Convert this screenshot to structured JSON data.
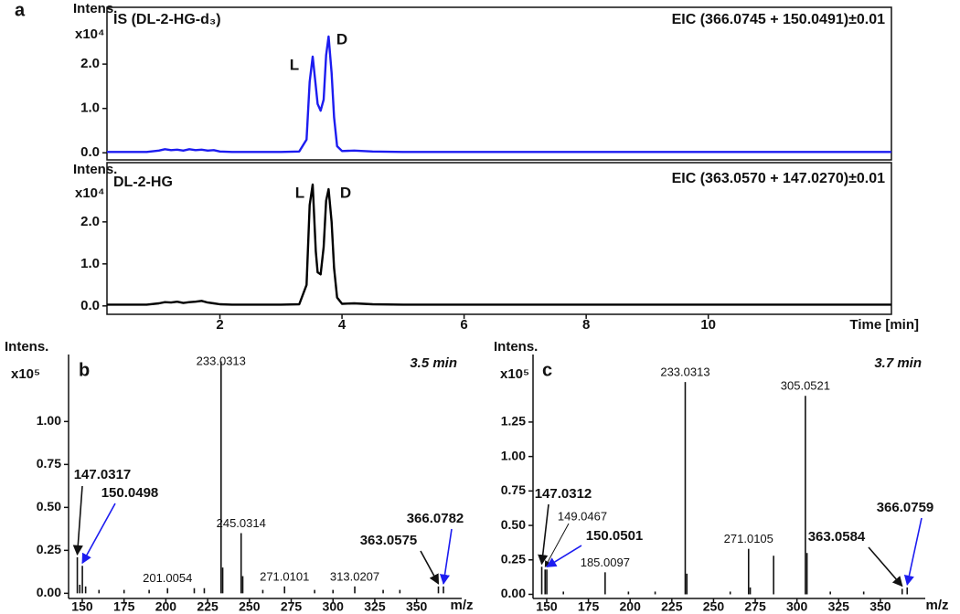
{
  "chart_data": [
    {
      "type": "line",
      "panel": "a",
      "y_label": "Intens.",
      "y_scale": "x10⁴",
      "title": "IS (DL-2-HG-d₃)",
      "subtitle": "EIC (366.0745 + 150.0491)±0.01",
      "annotations": [
        "L",
        "D"
      ],
      "color": "#1c1cf0",
      "x": [
        0.15,
        0.8,
        1.0,
        1.1,
        1.2,
        1.3,
        1.4,
        1.5,
        1.6,
        1.7,
        1.8,
        1.9,
        2.0,
        2.2,
        2.6,
        3.0,
        3.3,
        3.42,
        3.47,
        3.52,
        3.57,
        3.6,
        3.65,
        3.7,
        3.74,
        3.78,
        3.83,
        3.87,
        3.92,
        4.0,
        4.2,
        4.5,
        5.0,
        6.0,
        8.0,
        10.0,
        12.0,
        13.0
      ],
      "values": [
        0.02,
        0.02,
        0.05,
        0.08,
        0.06,
        0.07,
        0.05,
        0.08,
        0.06,
        0.07,
        0.05,
        0.06,
        0.03,
        0.02,
        0.02,
        0.02,
        0.03,
        0.3,
        1.6,
        2.17,
        1.5,
        1.1,
        0.95,
        1.2,
        2.2,
        2.62,
        1.8,
        0.8,
        0.15,
        0.04,
        0.05,
        0.03,
        0.02,
        0.02,
        0.02,
        0.02,
        0.02,
        0.02
      ],
      "xlim": [
        0.15,
        13.0
      ],
      "ylim": [
        -0.16,
        3.28
      ],
      "yticks": [
        {
          "value": 0,
          "label": "0.0"
        },
        {
          "value": 1,
          "label": "1.0"
        },
        {
          "value": 2,
          "label": "2.0"
        }
      ]
    },
    {
      "type": "line",
      "y_label": "Intens.",
      "y_scale": "x10⁴",
      "title": "DL-2-HG",
      "subtitle": "EIC (363.0570 + 147.0270)±0.01",
      "annotations": [
        "L",
        "D"
      ],
      "x_label": "Time [min]",
      "color": "#000000",
      "x": [
        0.15,
        0.8,
        1.0,
        1.1,
        1.2,
        1.3,
        1.4,
        1.5,
        1.6,
        1.7,
        1.8,
        1.9,
        2.0,
        2.2,
        2.6,
        3.0,
        3.3,
        3.42,
        3.47,
        3.52,
        3.57,
        3.6,
        3.65,
        3.7,
        3.74,
        3.78,
        3.83,
        3.87,
        3.92,
        4.0,
        4.2,
        4.5,
        5.0,
        6.0,
        8.0,
        10.0,
        12.0,
        13.0
      ],
      "values": [
        0.03,
        0.03,
        0.06,
        0.09,
        0.08,
        0.1,
        0.07,
        0.09,
        0.1,
        0.12,
        0.08,
        0.06,
        0.04,
        0.03,
        0.03,
        0.03,
        0.04,
        0.5,
        2.4,
        2.89,
        1.3,
        0.8,
        0.75,
        1.4,
        2.5,
        2.78,
        2.0,
        0.9,
        0.2,
        0.05,
        0.06,
        0.04,
        0.03,
        0.03,
        0.03,
        0.03,
        0.03,
        0.03
      ],
      "xlim": [
        0.15,
        13.0
      ],
      "xticks": [
        2,
        4,
        6,
        8,
        10
      ],
      "ylim": [
        -0.2,
        3.41
      ],
      "yticks": [
        {
          "value": 0,
          "label": "0.0"
        },
        {
          "value": 1,
          "label": "1.0"
        },
        {
          "value": 2,
          "label": "2.0"
        }
      ]
    },
    {
      "type": "stem",
      "panel": "b",
      "y_label": "Intens.",
      "y_scale": "x10⁵",
      "annotation": "3.5 min",
      "x_label": "m/z",
      "xlim": [
        141.8,
        377
      ],
      "xticks": [
        150,
        175,
        200,
        225,
        250,
        275,
        300,
        325,
        350
      ],
      "ylim": [
        -0.03,
        1.39
      ],
      "yticks": [
        {
          "value": 0,
          "label": "0.00"
        },
        {
          "value": 0.25,
          "label": "0.25"
        },
        {
          "value": 0.5,
          "label": "0.50"
        },
        {
          "value": 0.75,
          "label": "0.75"
        },
        {
          "value": 1,
          "label": "1.00"
        }
      ],
      "series": [
        {
          "label_color": "#111111",
          "bold": false,
          "show_labels": true,
          "x": [
            233.0313,
            245.0314,
            201.0054,
            271.0101,
            313.0207
          ],
          "values": [
            1.35,
            0.35,
            0.03,
            0.04,
            0.04
          ]
        },
        {
          "label_color": "#111111",
          "bold": true,
          "show_labels": true,
          "x": [
            147.0317,
            363.0575
          ],
          "values": [
            0.21,
            0.04
          ]
        },
        {
          "label_color": "#1c1cf0",
          "bold": true,
          "show_labels": true,
          "x": [
            150.0498,
            366.0782
          ],
          "values": [
            0.16,
            0.04
          ]
        },
        {
          "label_color": "#111111",
          "bold": false,
          "show_labels": false,
          "x": [
            148.5,
            152,
            160,
            175,
            190,
            217,
            223,
            234,
            246,
            258,
            289,
            300,
            330,
            340
          ],
          "values": [
            0.05,
            0.04,
            0.02,
            0.02,
            0.02,
            0.03,
            0.03,
            0.15,
            0.1,
            0.02,
            0.02,
            0.02,
            0.02,
            0.02
          ]
        }
      ]
    },
    {
      "type": "stem",
      "panel": "c",
      "y_label": "Intens.",
      "y_scale": "x10⁵",
      "annotation": "3.7 min",
      "x_label": "m/z",
      "xlim": [
        141.8,
        376.9
      ],
      "xticks": [
        150,
        175,
        200,
        225,
        250,
        275,
        300,
        325,
        350
      ],
      "ylim": [
        -0.03,
        1.74
      ],
      "yticks": [
        {
          "value": 0,
          "label": "0.00"
        },
        {
          "value": 0.25,
          "label": "0.25"
        },
        {
          "value": 0.5,
          "label": "0.50"
        },
        {
          "value": 0.75,
          "label": "0.75"
        },
        {
          "value": 1,
          "label": "1.00"
        },
        {
          "value": 1.25,
          "label": "1.25"
        }
      ],
      "series": [
        {
          "label_color": "#111111",
          "bold": false,
          "show_labels": true,
          "x": [
            233.0313,
            305.0521,
            271.0105,
            185.0097,
            149.0467
          ],
          "values": [
            1.54,
            1.44,
            0.33,
            0.16,
            0.18
          ]
        },
        {
          "label_color": "#111111",
          "bold": true,
          "show_labels": true,
          "x": [
            147.0312,
            363.0584
          ],
          "values": [
            0.2,
            0.04
          ]
        },
        {
          "label_color": "#1c1cf0",
          "bold": true,
          "show_labels": true,
          "x": [
            150.0501,
            366.0759
          ],
          "values": [
            0.18,
            0.05
          ]
        },
        {
          "label_color": "#111111",
          "bold": false,
          "show_labels": false,
          "x": [
            160,
            199,
            215,
            234,
            260,
            272,
            286,
            306,
            320,
            340
          ],
          "values": [
            0.02,
            0.02,
            0.02,
            0.15,
            0.02,
            0.05,
            0.28,
            0.3,
            0.02,
            0.02
          ]
        }
      ]
    }
  ]
}
